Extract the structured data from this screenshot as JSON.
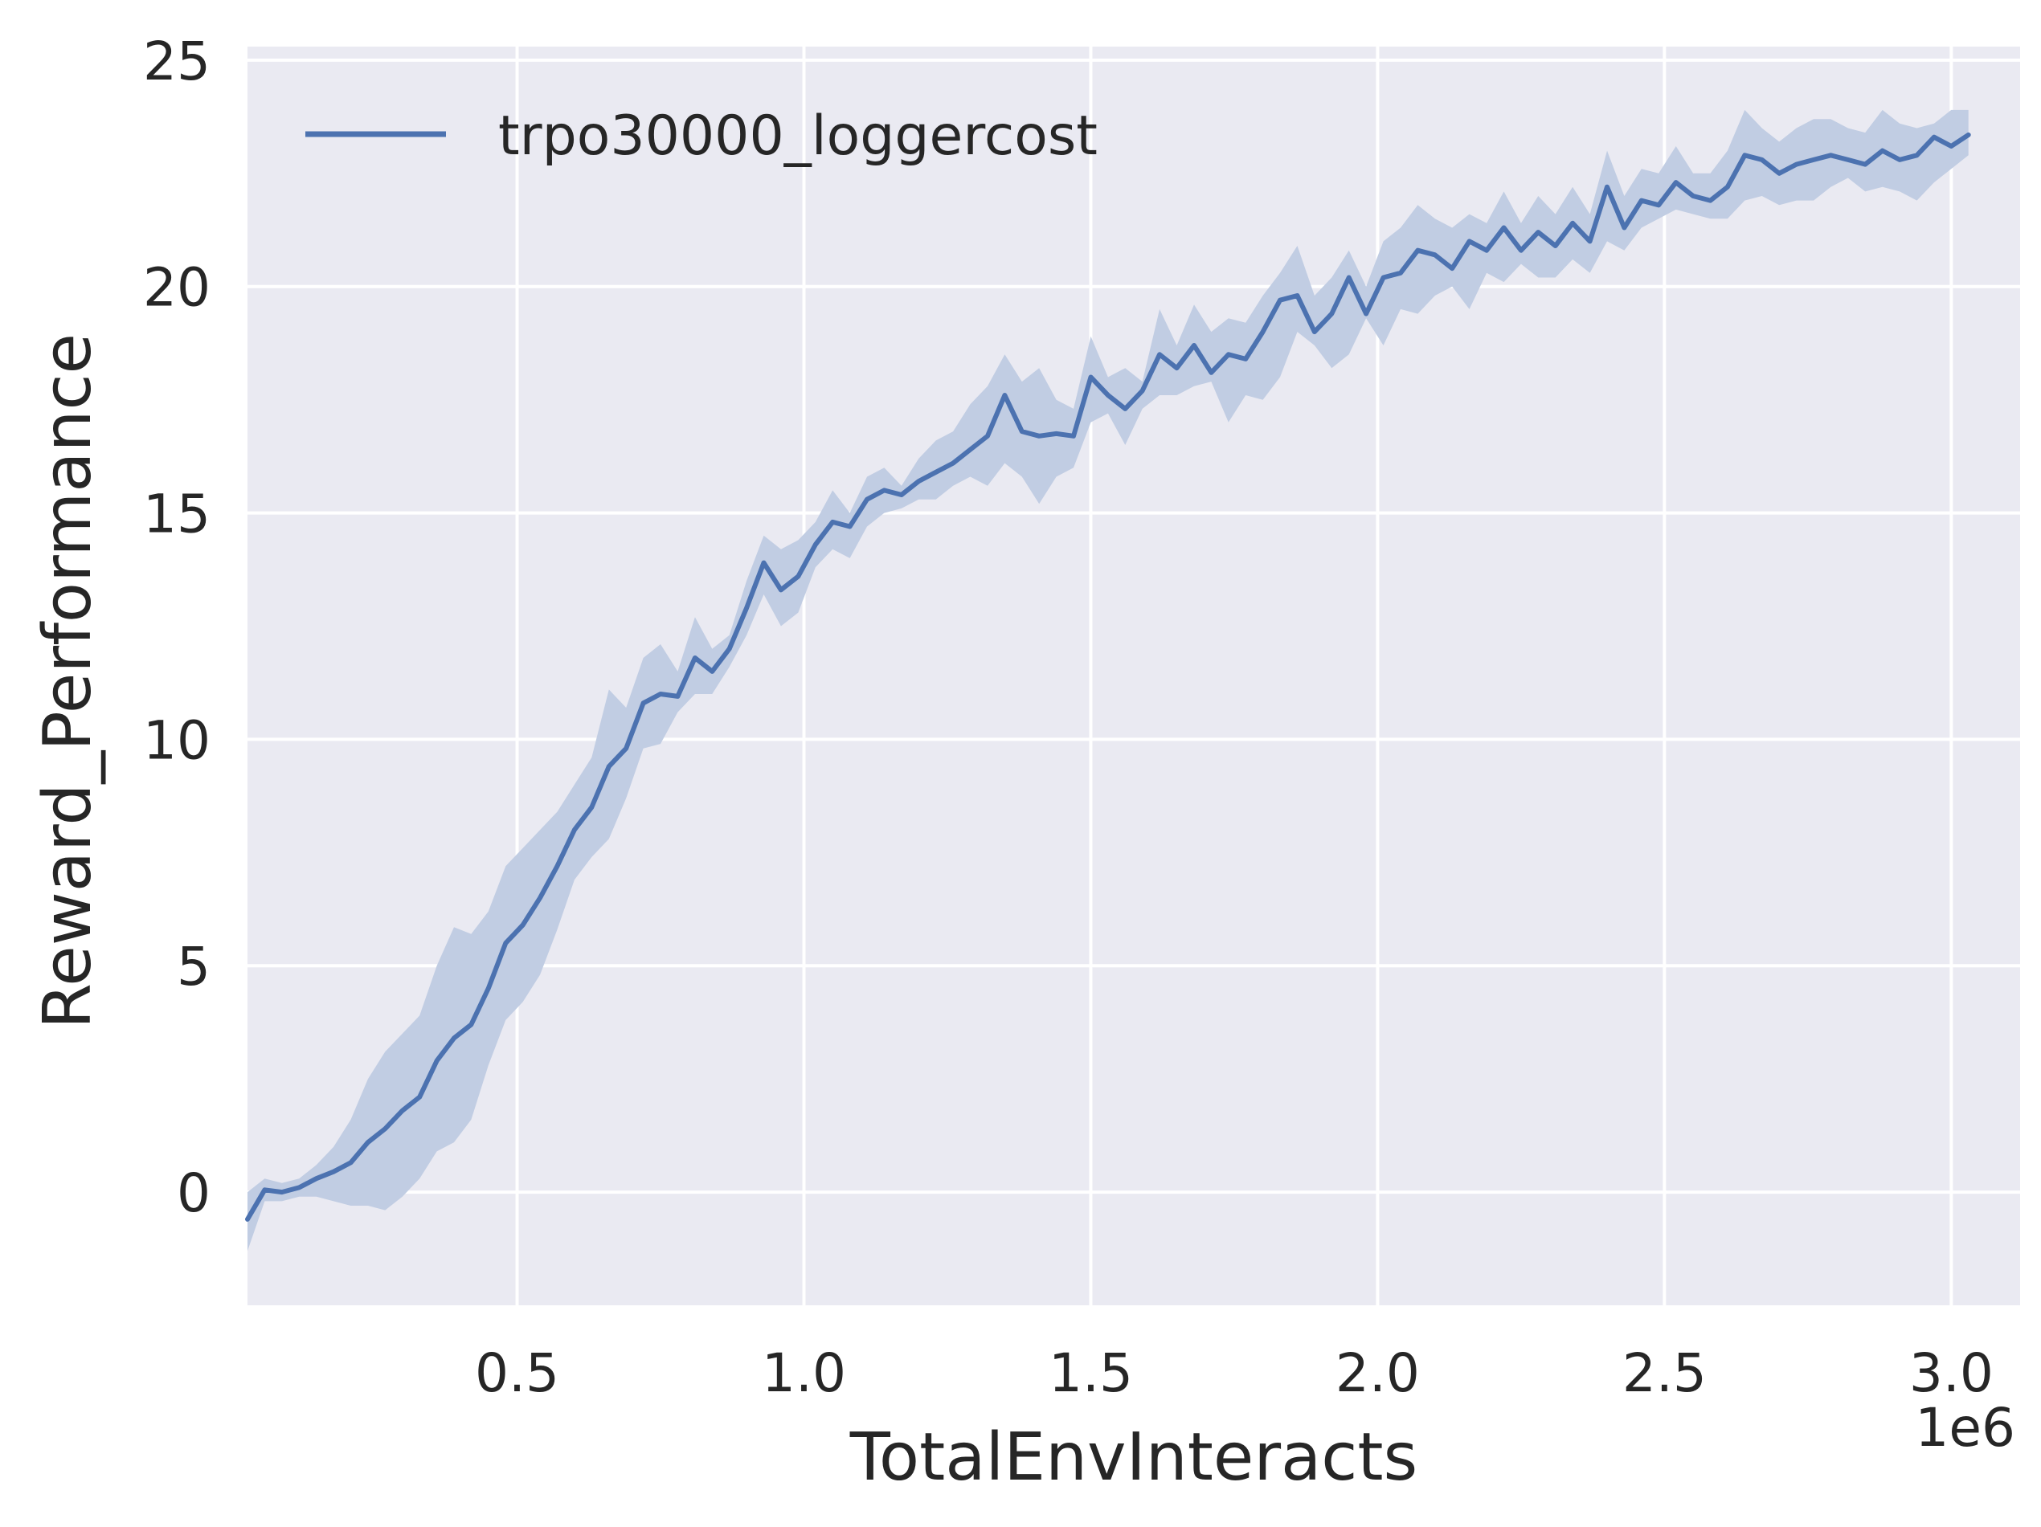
{
  "chart_data": {
    "type": "line",
    "xlabel": "TotalEnvInteracts",
    "ylabel": "Reward_Performance",
    "x_offset_label": "1e6",
    "xlim": [
      0.03,
      3.12
    ],
    "ylim": [
      -2.5,
      25.3
    ],
    "xticks": [
      0.5,
      1.0,
      1.5,
      2.0,
      2.5,
      3.0
    ],
    "xtick_labels": [
      "0.5",
      "1.0",
      "1.5",
      "2.0",
      "2.5",
      "3.0"
    ],
    "yticks": [
      0,
      5,
      10,
      15,
      20,
      25
    ],
    "ytick_labels": [
      "0",
      "5",
      "10",
      "15",
      "20",
      "25"
    ],
    "grid": true,
    "legend_position": "top-left",
    "colors": {
      "background": "#eaeaf2",
      "grid": "#ffffff",
      "line": "#4c72b0",
      "band": "#c1cde3"
    },
    "series": [
      {
        "name": "trpo30000_loggercost",
        "x": [
          0.03,
          0.06,
          0.09,
          0.12,
          0.15,
          0.18,
          0.21,
          0.24,
          0.27,
          0.3,
          0.33,
          0.36,
          0.39,
          0.42,
          0.45,
          0.48,
          0.51,
          0.54,
          0.57,
          0.6,
          0.63,
          0.66,
          0.69,
          0.72,
          0.75,
          0.78,
          0.81,
          0.84,
          0.87,
          0.9,
          0.93,
          0.96,
          0.99,
          1.02,
          1.05,
          1.08,
          1.11,
          1.14,
          1.17,
          1.2,
          1.23,
          1.26,
          1.29,
          1.32,
          1.35,
          1.38,
          1.41,
          1.44,
          1.47,
          1.5,
          1.53,
          1.56,
          1.59,
          1.62,
          1.65,
          1.68,
          1.71,
          1.74,
          1.77,
          1.8,
          1.83,
          1.86,
          1.89,
          1.92,
          1.95,
          1.98,
          2.01,
          2.04,
          2.07,
          2.1,
          2.13,
          2.16,
          2.19,
          2.22,
          2.25,
          2.28,
          2.31,
          2.34,
          2.37,
          2.4,
          2.43,
          2.46,
          2.49,
          2.52,
          2.55,
          2.58,
          2.61,
          2.64,
          2.67,
          2.7,
          2.73,
          2.76,
          2.79,
          2.82,
          2.85,
          2.88,
          2.91,
          2.94,
          2.97,
          3.0,
          3.03
        ],
        "y": [
          -0.6,
          0.05,
          0.0,
          0.1,
          0.3,
          0.45,
          0.65,
          1.1,
          1.4,
          1.8,
          2.1,
          2.9,
          3.4,
          3.7,
          4.5,
          5.5,
          5.9,
          6.5,
          7.2,
          8.0,
          8.5,
          9.4,
          9.8,
          10.8,
          11.0,
          10.95,
          11.8,
          11.5,
          12.0,
          12.9,
          13.9,
          13.3,
          13.6,
          14.3,
          14.8,
          14.7,
          15.3,
          15.5,
          15.4,
          15.7,
          15.9,
          16.1,
          16.4,
          16.7,
          17.6,
          16.8,
          16.7,
          16.75,
          16.7,
          18.0,
          17.6,
          17.3,
          17.7,
          18.5,
          18.2,
          18.7,
          18.1,
          18.5,
          18.4,
          19.0,
          19.7,
          19.8,
          19.0,
          19.4,
          20.2,
          19.4,
          20.2,
          20.3,
          20.8,
          20.7,
          20.4,
          21.0,
          20.8,
          21.3,
          20.8,
          21.2,
          20.9,
          21.4,
          21.0,
          22.2,
          21.3,
          21.9,
          21.8,
          22.3,
          22.0,
          21.9,
          22.2,
          22.9,
          22.8,
          22.5,
          22.7,
          22.8,
          22.9,
          22.8,
          22.7,
          23.0,
          22.8,
          22.9,
          23.3,
          23.1,
          23.35
        ],
        "lower": [
          -1.3,
          -0.2,
          -0.2,
          -0.1,
          -0.1,
          -0.2,
          -0.3,
          -0.3,
          -0.4,
          -0.1,
          0.3,
          0.9,
          1.1,
          1.6,
          2.8,
          3.8,
          4.2,
          4.8,
          5.8,
          6.9,
          7.4,
          7.8,
          8.7,
          9.8,
          9.9,
          10.6,
          11.0,
          11.0,
          11.6,
          12.3,
          13.2,
          12.5,
          12.8,
          13.8,
          14.2,
          14.0,
          14.7,
          15.0,
          15.1,
          15.3,
          15.3,
          15.6,
          15.8,
          15.6,
          16.1,
          15.8,
          15.2,
          15.8,
          16.0,
          17.0,
          17.2,
          16.5,
          17.3,
          17.6,
          17.6,
          17.8,
          17.9,
          17.0,
          17.6,
          17.5,
          18.0,
          19.0,
          18.7,
          18.2,
          18.5,
          19.3,
          18.7,
          19.5,
          19.4,
          19.8,
          20.0,
          19.5,
          20.3,
          20.1,
          20.5,
          20.2,
          20.2,
          20.6,
          20.3,
          21.0,
          20.8,
          21.3,
          21.5,
          21.7,
          21.6,
          21.5,
          21.5,
          21.9,
          22.0,
          21.8,
          21.9,
          21.9,
          22.2,
          22.4,
          22.1,
          22.2,
          22.1,
          21.9,
          22.3,
          22.6,
          22.9
        ],
        "upper": [
          0.0,
          0.3,
          0.2,
          0.3,
          0.6,
          1.0,
          1.6,
          2.5,
          3.1,
          3.5,
          3.9,
          5.0,
          5.85,
          5.7,
          6.2,
          7.2,
          7.6,
          8.0,
          8.4,
          9.0,
          9.6,
          11.1,
          10.7,
          11.8,
          12.1,
          11.5,
          12.7,
          12.0,
          12.3,
          13.5,
          14.5,
          14.2,
          14.4,
          14.8,
          15.5,
          15.0,
          15.8,
          16.0,
          15.6,
          16.2,
          16.6,
          16.8,
          17.4,
          17.8,
          18.5,
          17.9,
          18.2,
          17.5,
          17.3,
          18.9,
          18.0,
          18.2,
          17.9,
          19.5,
          18.7,
          19.6,
          19.0,
          19.3,
          19.2,
          19.8,
          20.3,
          20.9,
          19.8,
          20.2,
          20.8,
          20.0,
          21.0,
          21.3,
          21.8,
          21.5,
          21.3,
          21.6,
          21.4,
          22.1,
          21.4,
          22.0,
          21.6,
          22.2,
          21.6,
          23.0,
          22.0,
          22.6,
          22.5,
          23.1,
          22.5,
          22.5,
          23.0,
          23.9,
          23.5,
          23.2,
          23.5,
          23.7,
          23.7,
          23.5,
          23.4,
          23.9,
          23.6,
          23.5,
          23.6,
          23.9,
          23.9
        ]
      }
    ]
  }
}
